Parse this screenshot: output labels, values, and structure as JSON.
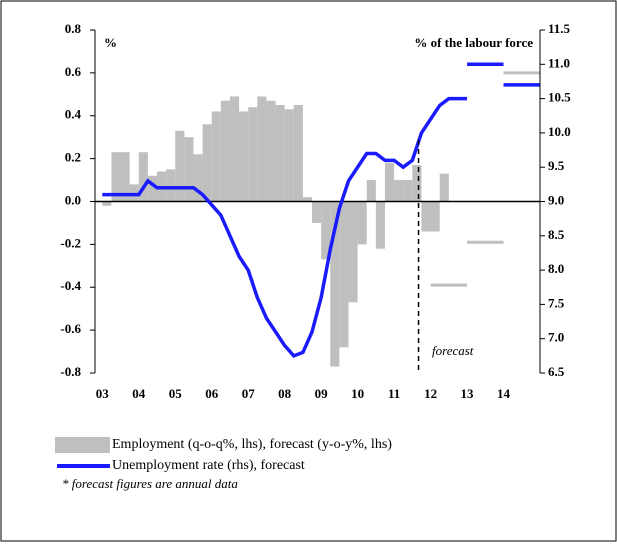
{
  "chart_data": {
    "type": "bar",
    "y_unit": "%",
    "y2_unit": "% of the labour force",
    "forecast_label": "forecast",
    "forecast_start": 2011.67,
    "note": "* forecast figures are annual data",
    "xlim": [
      2002.8,
      2015
    ],
    "ylim": [
      -0.8,
      0.8
    ],
    "y2lim": [
      6.5,
      11.5
    ],
    "xticks": [
      {
        "value": 2003,
        "label": "03"
      },
      {
        "value": 2004,
        "label": "04"
      },
      {
        "value": 2005,
        "label": "05"
      },
      {
        "value": 2006,
        "label": "06"
      },
      {
        "value": 2007,
        "label": "07"
      },
      {
        "value": 2008,
        "label": "08"
      },
      {
        "value": 2009,
        "label": "09"
      },
      {
        "value": 2010,
        "label": "10"
      },
      {
        "value": 2011,
        "label": "11"
      },
      {
        "value": 2012,
        "label": "12"
      },
      {
        "value": 2013,
        "label": "13"
      },
      {
        "value": 2014,
        "label": "14"
      }
    ],
    "yticks": [
      -0.8,
      -0.6,
      -0.4,
      -0.2,
      {
        "value": 0,
        "label": "0.0"
      },
      0.2,
      0.4,
      0.6,
      0.8
    ],
    "y2ticks": [
      6.5,
      {
        "value": 7,
        "label": "7.0"
      },
      7.5,
      {
        "value": 8,
        "label": "8.0"
      },
      8.5,
      {
        "value": 9,
        "label": "9.0"
      },
      9.5,
      {
        "value": 10,
        "label": "10.0"
      },
      10.5,
      {
        "value": 11,
        "label": "11.0"
      },
      11.5
    ],
    "series": [
      {
        "name": "Employment (q-o-q%, lhs), forecast (y-o-y%, lhs)",
        "color": "#bfbfbf",
        "x": [
          2003,
          2003.25,
          2003.5,
          2003.75,
          2004,
          2004.25,
          2004.5,
          2004.75,
          2005,
          2005.25,
          2005.5,
          2005.75,
          2006,
          2006.25,
          2006.5,
          2006.75,
          2007,
          2007.25,
          2007.5,
          2007.75,
          2008,
          2008.25,
          2008.5,
          2008.75,
          2009,
          2009.25,
          2009.5,
          2009.75,
          2010,
          2010.25,
          2010.5,
          2010.75,
          2011,
          2011.25,
          2011.5,
          2011.75,
          2012,
          2012.25
        ],
        "values": [
          -0.02,
          0.23,
          0.23,
          0.08,
          0.23,
          0.12,
          0.14,
          0.15,
          0.33,
          0.3,
          0.22,
          0.36,
          0.42,
          0.47,
          0.49,
          0.42,
          0.44,
          0.49,
          0.47,
          0.45,
          0.43,
          0.45,
          0.02,
          -0.1,
          -0.27,
          -0.77,
          -0.68,
          -0.47,
          -0.2,
          0.1,
          -0.22,
          0.18,
          0.1,
          0.1,
          0.17,
          -0.14,
          -0.14,
          0.13
        ],
        "forecast": {
          "x": [
            2012,
            2013,
            2014
          ],
          "values": [
            -0.39,
            -0.19,
            0.6
          ]
        }
      },
      {
        "name": "Unemployment rate (rhs), forecast",
        "color": "#1a1aff",
        "axis": "y2",
        "x": [
          2003,
          2003.5,
          2004,
          2004.25,
          2004.5,
          2005,
          2005.5,
          2005.75,
          2006,
          2006.25,
          2006.5,
          2006.75,
          2007,
          2007.25,
          2007.5,
          2007.75,
          2008,
          2008.25,
          2008.5,
          2008.75,
          2009,
          2009.25,
          2009.5,
          2009.75,
          2010,
          2010.25,
          2010.5,
          2010.75,
          2011,
          2011.25,
          2011.5,
          2011.75,
          2012,
          2012.25,
          2012.5,
          2013
        ],
        "values": [
          9.1,
          9.1,
          9.1,
          9.3,
          9.2,
          9.2,
          9.2,
          9.1,
          8.95,
          8.8,
          8.5,
          8.2,
          8.0,
          7.6,
          7.3,
          7.1,
          6.9,
          6.75,
          6.8,
          7.1,
          7.6,
          8.3,
          8.9,
          9.3,
          9.5,
          9.7,
          9.7,
          9.6,
          9.6,
          9.5,
          9.6,
          10.0,
          10.2,
          10.4,
          10.5,
          10.5
        ],
        "forecast": {
          "x": [
            2013,
            2014
          ],
          "values": [
            11.0,
            10.7
          ]
        }
      }
    ]
  }
}
